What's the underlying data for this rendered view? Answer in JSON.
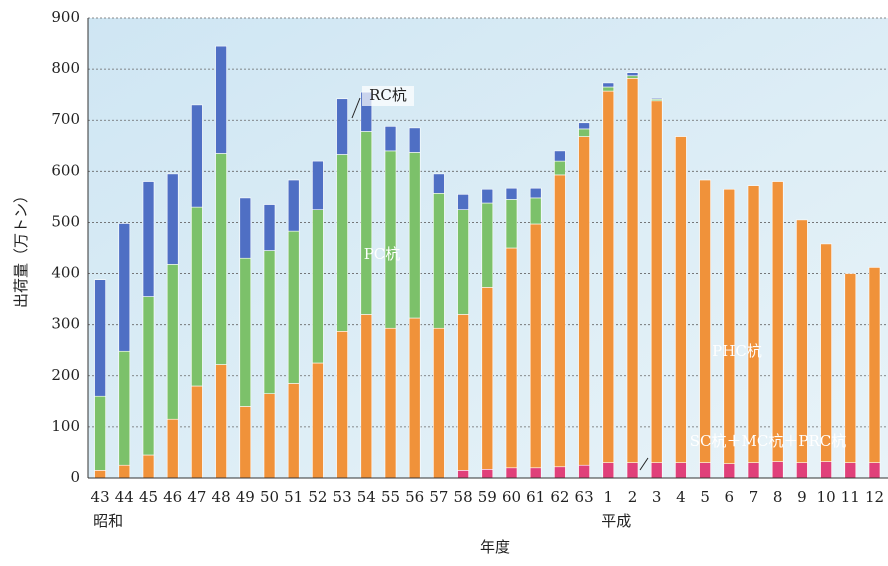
{
  "chart_data": {
    "type": "stacked_bar",
    "y_label": "出荷量（万トン）",
    "x_label": "年度",
    "categories": [
      "43",
      "44",
      "45",
      "46",
      "47",
      "48",
      "49",
      "50",
      "51",
      "52",
      "53",
      "54",
      "55",
      "56",
      "57",
      "58",
      "59",
      "60",
      "61",
      "62",
      "63",
      "1",
      "2",
      "3",
      "4",
      "5",
      "6",
      "7",
      "8",
      "9",
      "10",
      "11",
      "12"
    ],
    "era": [
      "昭和",
      null,
      null,
      null,
      null,
      null,
      null,
      null,
      null,
      null,
      null,
      null,
      null,
      null,
      null,
      null,
      null,
      null,
      null,
      null,
      null,
      "平成",
      null,
      null,
      null,
      null,
      null,
      null,
      null,
      null,
      null,
      null,
      null
    ],
    "series": [
      {
        "name": "SC杭＋MC杭＋PRC杭",
        "color": "#e0407a",
        "values": [
          0,
          0,
          0,
          0,
          0,
          0,
          0,
          0,
          0,
          0,
          0,
          0,
          0,
          0,
          0,
          15,
          17,
          20,
          20,
          22,
          25,
          30,
          30,
          30,
          30,
          30,
          28,
          30,
          32,
          30,
          32,
          30,
          30
        ]
      },
      {
        "name": "PHC杭",
        "color": "#f0923a",
        "values": [
          15,
          25,
          45,
          115,
          180,
          222,
          140,
          165,
          185,
          225,
          287,
          320,
          293,
          313,
          293,
          305,
          356,
          430,
          477,
          571,
          643,
          727,
          752,
          708,
          638,
          553,
          537,
          542,
          548,
          475,
          426,
          370,
          382
        ]
      },
      {
        "name": "PC杭",
        "color": "#7cc16a",
        "values": [
          145,
          223,
          310,
          303,
          350,
          413,
          290,
          280,
          298,
          300,
          346,
          358,
          347,
          324,
          264,
          205,
          165,
          95,
          51,
          27,
          15,
          8,
          5,
          3,
          0,
          0,
          0,
          0,
          0,
          0,
          0,
          0,
          0
        ]
      },
      {
        "name": "RC杭",
        "color": "#4f6fc4",
        "values": [
          228,
          250,
          225,
          177,
          200,
          210,
          118,
          90,
          100,
          95,
          109,
          77,
          48,
          48,
          38,
          30,
          27,
          22,
          19,
          20,
          12,
          8,
          6,
          2,
          0,
          0,
          0,
          0,
          0,
          0,
          0,
          0,
          0
        ]
      }
    ],
    "ylim": [
      0,
      900
    ],
    "yticks": [
      0,
      100,
      200,
      300,
      400,
      500,
      600,
      700,
      800,
      900
    ],
    "grid": true
  }
}
